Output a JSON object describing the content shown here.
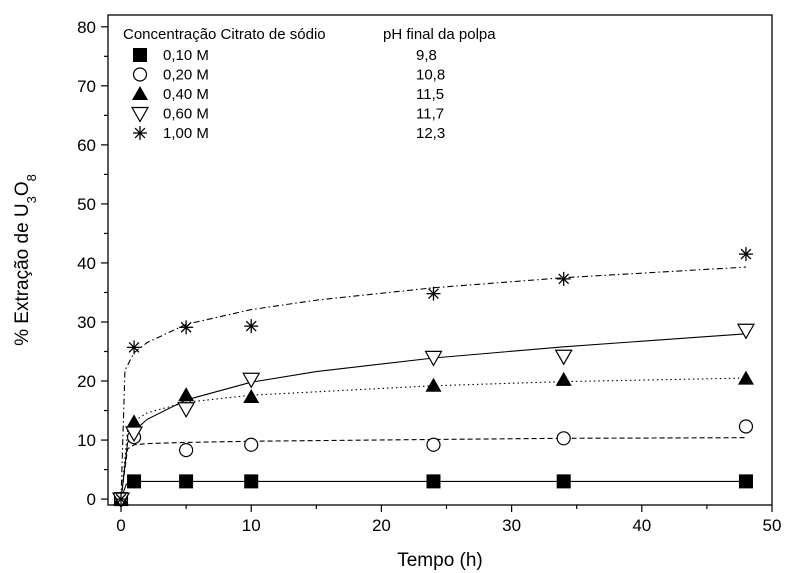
{
  "chart_data": {
    "type": "scatter",
    "xlabel": "Tempo (h)",
    "ylabel": {
      "prefix": "% Extração de U",
      "sub1": "3",
      "mid": "O",
      "sub2": "8"
    },
    "xlim": [
      -1,
      50
    ],
    "ylim": [
      -1,
      82
    ],
    "xticks": [
      0,
      10,
      20,
      30,
      40,
      50
    ],
    "yticks": [
      0,
      10,
      20,
      30,
      40,
      50,
      60,
      70,
      80
    ],
    "legend": {
      "position": "top-left",
      "header_left": "Concentração Citrato de sódio",
      "header_right": "pH final da polpa"
    },
    "series": [
      {
        "name": "0,10 M",
        "ph": "9,8",
        "marker": "filled-square",
        "line": "solid",
        "x": [
          0,
          1,
          5,
          10,
          24,
          34,
          48
        ],
        "y": [
          0,
          3.0,
          3.0,
          3.0,
          3.0,
          3.0,
          3.0
        ],
        "fit_x": [
          0,
          0.4,
          1,
          2,
          5,
          10,
          24,
          34,
          48
        ],
        "fit_y": [
          0,
          2.5,
          3.0,
          3.0,
          3.0,
          3.0,
          3.0,
          3.0,
          3.0
        ]
      },
      {
        "name": "0,20 M",
        "ph": "10,8",
        "marker": "open-circle",
        "line": "dashed",
        "x": [
          0,
          1,
          5,
          10,
          24,
          34,
          48
        ],
        "y": [
          0,
          10.5,
          8.3,
          9.2,
          9.2,
          10.3,
          12.3
        ],
        "fit_x": [
          0,
          0.5,
          1,
          2,
          5,
          10,
          24,
          34,
          48
        ],
        "fit_y": [
          0,
          8.5,
          9.2,
          9.4,
          9.6,
          9.8,
          10.1,
          10.3,
          10.4
        ]
      },
      {
        "name": "0,40 M",
        "ph": "11,5",
        "marker": "filled-triangle-up",
        "line": "dotted",
        "x": [
          0,
          1,
          5,
          10,
          24,
          34,
          48
        ],
        "y": [
          0,
          13.0,
          17.6,
          17.3,
          19.2,
          20.2,
          20.4
        ],
        "fit_x": [
          0,
          0.5,
          1,
          2,
          5,
          10,
          24,
          34,
          48
        ],
        "fit_y": [
          0,
          11.5,
          13.2,
          14.6,
          16.4,
          17.6,
          19.2,
          19.9,
          20.5
        ]
      },
      {
        "name": "0,60 M",
        "ph": "11,7",
        "marker": "open-triangle-down",
        "line": "solid",
        "x": [
          0,
          1,
          5,
          10,
          24,
          34,
          48
        ],
        "y": [
          0,
          11.2,
          15.3,
          20.3,
          24.0,
          24.2,
          28.6
        ],
        "fit_x": [
          0,
          0.5,
          1,
          2,
          5,
          10,
          15,
          24,
          34,
          48
        ],
        "fit_y": [
          0,
          9.5,
          11.5,
          13.5,
          16.8,
          19.8,
          21.6,
          23.9,
          25.8,
          28.0
        ]
      },
      {
        "name": "1,00 M",
        "ph": "12,3",
        "marker": "asterisk",
        "line": "dash-dot",
        "x": [
          0,
          1,
          5,
          10,
          24,
          34,
          48
        ],
        "y": [
          0,
          25.7,
          29.1,
          29.3,
          34.8,
          37.3,
          41.5
        ],
        "fit_x": [
          0,
          0.3,
          1,
          2,
          5,
          10,
          15,
          24,
          34,
          48
        ],
        "fit_y": [
          0,
          21.8,
          24.8,
          26.5,
          29.6,
          32.1,
          33.7,
          35.8,
          37.5,
          39.3
        ]
      }
    ]
  }
}
